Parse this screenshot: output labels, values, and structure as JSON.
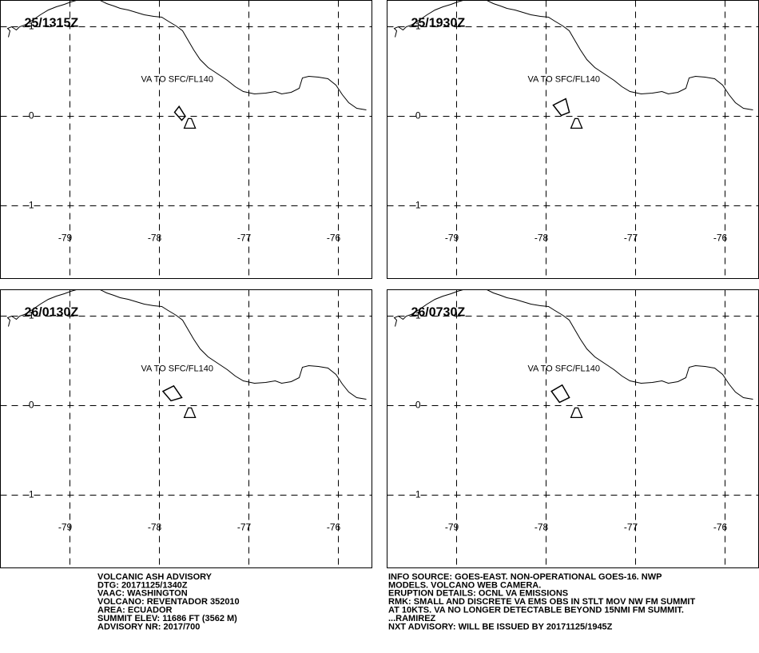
{
  "map": {
    "lon_ticks": [
      -79,
      -78,
      -77,
      -76
    ],
    "lat_ticks": [
      1,
      0,
      -1
    ],
    "volcano": {
      "lon": -77.66,
      "lat": -0.07
    }
  },
  "panels": [
    {
      "time": "25/1315Z",
      "annotation": "VA TO SFC/FL140",
      "ash_polygon": [
        [
          -77.83,
          0.045
        ],
        [
          -77.78,
          0.11
        ],
        [
          -77.71,
          0.0
        ],
        [
          -77.75,
          -0.045
        ]
      ]
    },
    {
      "time": "25/1930Z",
      "annotation": "VA TO SFC/FL140",
      "ash_polygon": [
        [
          -77.92,
          0.125
        ],
        [
          -77.78,
          0.196
        ],
        [
          -77.74,
          0.045
        ],
        [
          -77.83,
          0.009
        ]
      ]
    },
    {
      "time": "26/0130Z",
      "annotation": "VA TO SFC/FL140",
      "ash_polygon": [
        [
          -77.96,
          0.16
        ],
        [
          -77.84,
          0.22
        ],
        [
          -77.75,
          0.09
        ],
        [
          -77.87,
          0.054
        ]
      ]
    },
    {
      "time": "26/0730Z",
      "annotation": "VA TO SFC/FL140",
      "ash_polygon": [
        [
          -77.94,
          0.16
        ],
        [
          -77.82,
          0.23
        ],
        [
          -77.74,
          0.09
        ],
        [
          -77.85,
          0.036
        ]
      ]
    }
  ],
  "advisory_left": [
    "VOLCANIC ASH ADVISORY",
    "DTG: 20171125/1340Z",
    "VAAC: WASHINGTON",
    "VOLCANO: REVENTADOR 352010",
    "AREA: ECUADOR",
    "SUMMIT ELEV: 11686 FT (3562 M)",
    "ADVISORY NR: 2017/700"
  ],
  "advisory_right": [
    "INFO SOURCE: GOES-EAST. NON-OPERATIONAL GOES-16. NWP",
    "MODELS. VOLCANO WEB CAMERA.",
    "ERUPTION DETAILS: OCNL VA EMISSIONS",
    "RMK: SMALL AND DISCRETE VA EMS OBS IN STLT MOV NW FM SUMMIT",
    "AT 10KTS. VA NO LONGER DETECTABLE BEYOND 15NMI FM SUMMIT.",
    "...RAMIREZ",
    "NXT ADVISORY: WILL BE ISSUED BY 20171125/1945Z"
  ]
}
